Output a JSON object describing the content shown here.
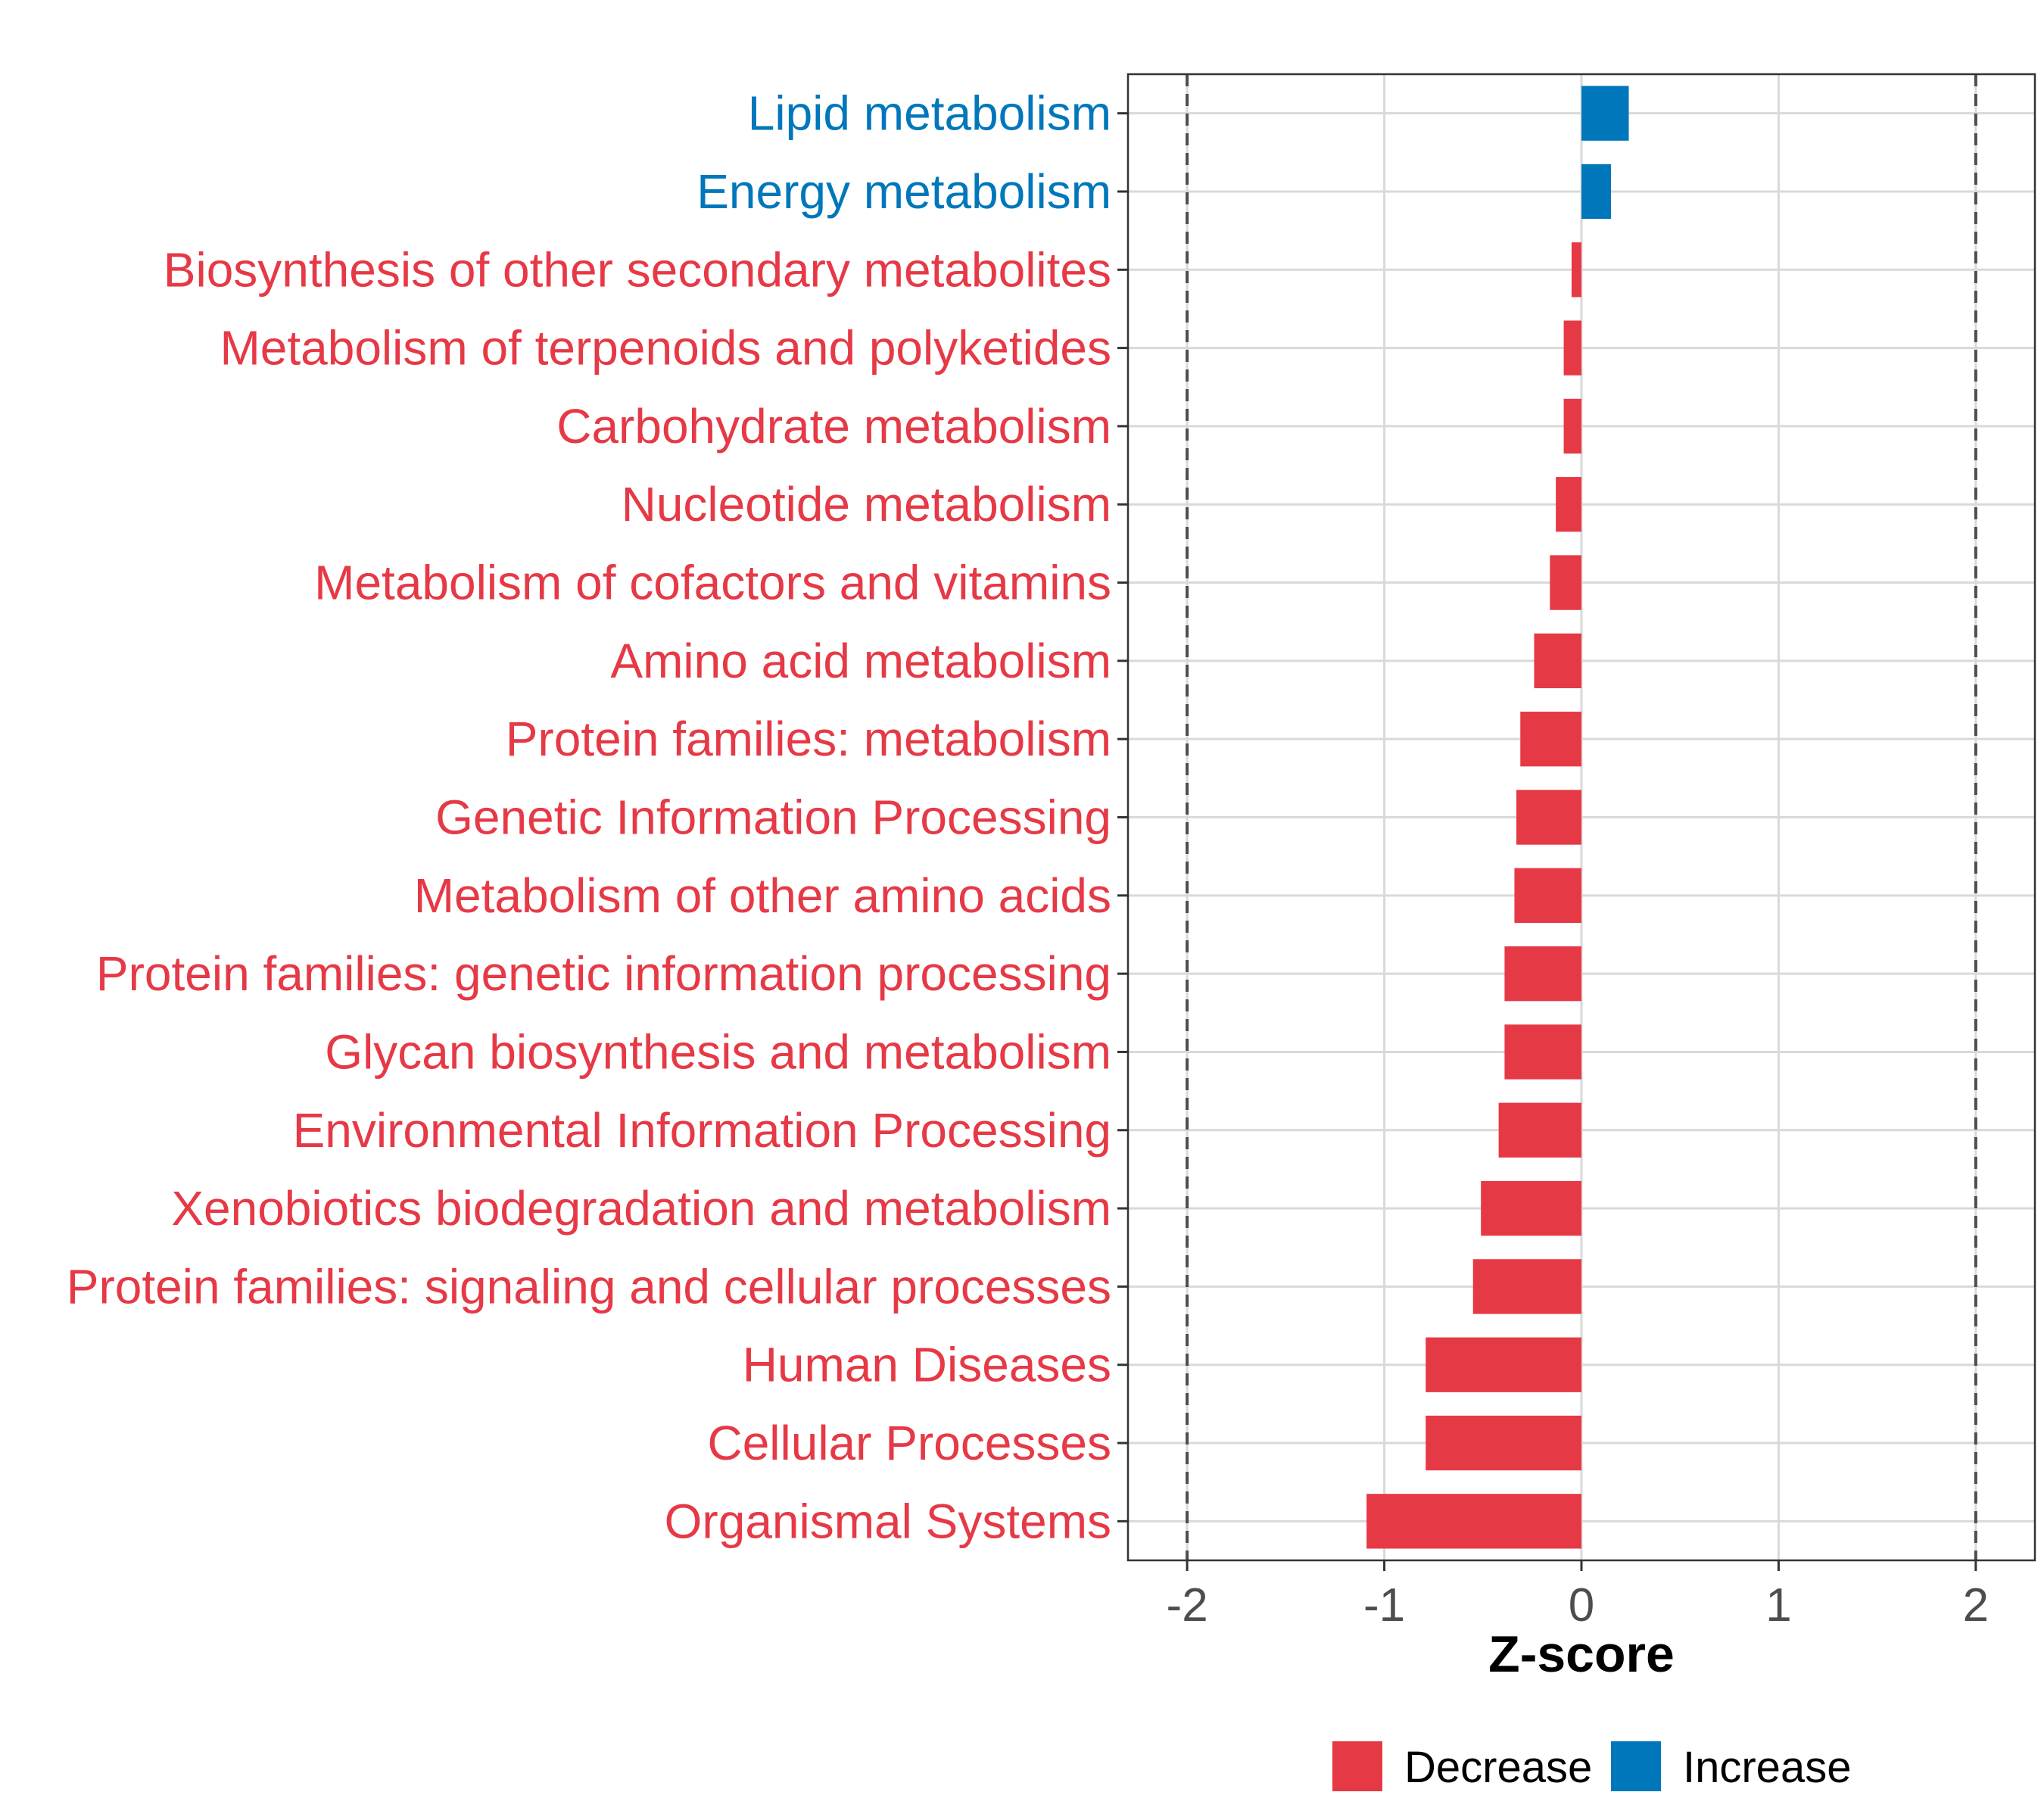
{
  "chart_data": {
    "type": "bar",
    "orientation": "horizontal",
    "title": "",
    "xlabel": "Z-score",
    "ylabel": "",
    "xlim": [
      -2.3,
      2.3
    ],
    "xticks": [
      -2,
      -1,
      0,
      1,
      2
    ],
    "xtick_labels": [
      "-2",
      "-1",
      "0",
      "1",
      "2"
    ],
    "reference_lines": [
      -2,
      2
    ],
    "grid": true,
    "legend_position": "bottom",
    "colors": {
      "Decrease": "#e63946",
      "Increase": "#0077bb"
    },
    "legend": [
      {
        "label": "Decrease",
        "color": "#e63946"
      },
      {
        "label": "Increase",
        "color": "#0077bb"
      }
    ],
    "categories": [
      "Lipid metabolism",
      "Energy metabolism",
      "Biosynthesis of other secondary metabolites",
      "Metabolism of terpenoids and polyketides",
      "Carbohydrate metabolism",
      "Nucleotide metabolism",
      "Metabolism of cofactors and vitamins",
      "Amino acid metabolism",
      "Protein families: metabolism",
      "Genetic Information Processing",
      "Metabolism of other amino acids",
      "Protein families: genetic information processing",
      "Glycan biosynthesis and metabolism",
      "Environmental Information Processing",
      "Xenobiotics biodegradation and metabolism",
      "Protein families: signaling and cellular processes",
      "Human Diseases",
      "Cellular Processes",
      "Organismal Systems"
    ],
    "values": [
      0.24,
      0.15,
      -0.05,
      -0.09,
      -0.09,
      -0.13,
      -0.16,
      -0.24,
      -0.31,
      -0.33,
      -0.34,
      -0.39,
      -0.39,
      -0.42,
      -0.51,
      -0.55,
      -0.79,
      -0.79,
      -1.09
    ]
  }
}
